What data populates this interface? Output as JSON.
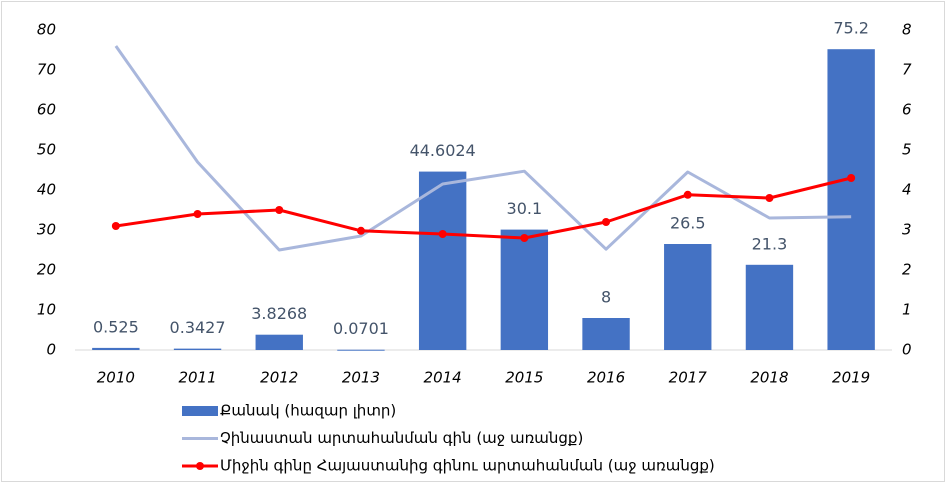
{
  "chart_data": {
    "type": "bar-line",
    "categories": [
      "2010",
      "2011",
      "2012",
      "2013",
      "2014",
      "2015",
      "2016",
      "2017",
      "2018",
      "2019"
    ],
    "series": [
      {
        "name": "Քանակ (հազար լիտր)",
        "color": "#4472c4",
        "type": "bar",
        "axis": "y",
        "values": [
          0.525,
          0.3427,
          3.8268,
          0.0701,
          44.6024,
          30.1,
          8,
          26.5,
          21.3,
          75.2
        ]
      },
      {
        "name": "Չինաստան արտահանման գին (աջ առանցք)",
        "color": "#a9b7dc",
        "type": "line",
        "axis": "y2",
        "values": [
          7.6,
          4.7,
          2.5,
          2.85,
          4.15,
          4.47,
          2.52,
          4.45,
          3.3,
          3.33
        ]
      },
      {
        "name": "Միջին գինը Հայաստանից գինու արտահանման (աջ առանցք)",
        "color": "#ff0000",
        "type": "line",
        "markers": true,
        "axis": "y2",
        "values": [
          3.1,
          3.4,
          3.5,
          2.98,
          2.9,
          2.8,
          3.2,
          3.88,
          3.8,
          4.3
        ]
      }
    ],
    "ylim": [
      0,
      80
    ],
    "yticks": [
      0,
      10,
      20,
      30,
      40,
      50,
      60,
      70,
      80
    ],
    "y2lim": [
      0,
      8
    ],
    "y2ticks": [
      0,
      1,
      2,
      3,
      4,
      5,
      6,
      7,
      8
    ],
    "legend": "bottom-left"
  }
}
